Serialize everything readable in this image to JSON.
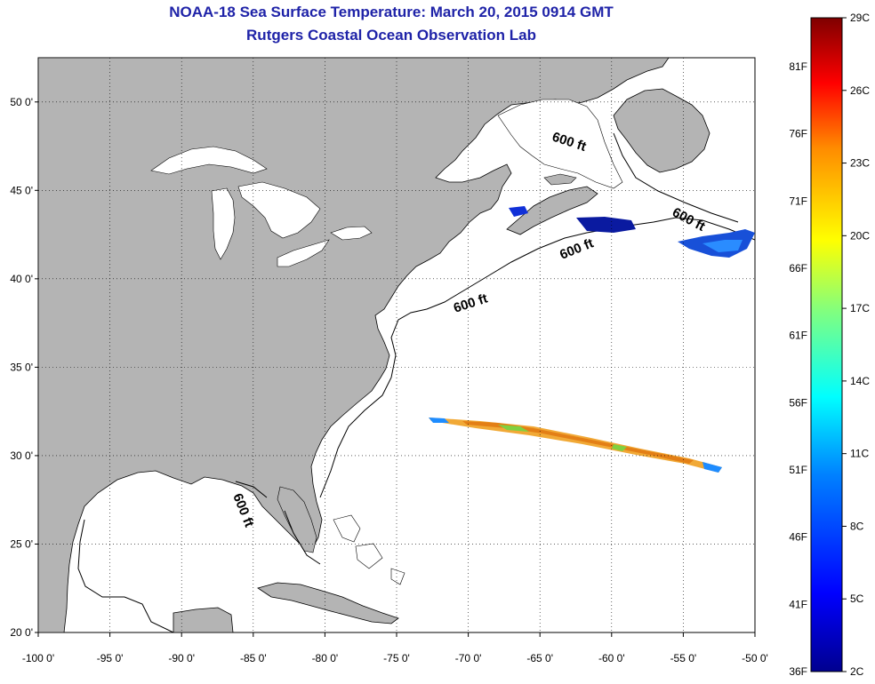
{
  "header": {
    "title": "NOAA-18 Sea Surface Temperature:  March 20, 2015 0914 GMT",
    "subtitle": "Rutgers Coastal Ocean Observation Lab"
  },
  "map": {
    "lon_range": [
      -100,
      -50
    ],
    "lat_range": [
      20,
      52.5
    ],
    "lon_ticks": [
      "-100 0'",
      "-95 0'",
      "-90 0'",
      "-85 0'",
      "-80 0'",
      "-75 0'",
      "-70 0'",
      "-65 0'",
      "-60 0'",
      "-55 0'",
      "-50 0'"
    ],
    "lat_ticks": [
      "20 0'",
      "25 0'",
      "30 0'",
      "35 0'",
      "40 0'",
      "45 0'",
      "50 0'"
    ],
    "contour_labels": [
      "600 ft",
      "600 ft",
      "600 ft",
      "600 ft",
      "600 ft"
    ],
    "land_color": "#b4b4b4",
    "grid": true
  },
  "colorbar": {
    "celsius_labels": [
      "29C",
      "26C",
      "23C",
      "20C",
      "17C",
      "14C",
      "11C",
      "8C",
      "5C",
      "2C"
    ],
    "fahrenheit_labels": [
      "81F",
      "76F",
      "71F",
      "66F",
      "61F",
      "56F",
      "51F",
      "46F",
      "41F",
      "36F"
    ],
    "colors": [
      "#7f0000",
      "#ff0000",
      "#ff8c00",
      "#ffff00",
      "#80ff80",
      "#00ffff",
      "#0080ff",
      "#0000ff",
      "#00008f"
    ]
  }
}
